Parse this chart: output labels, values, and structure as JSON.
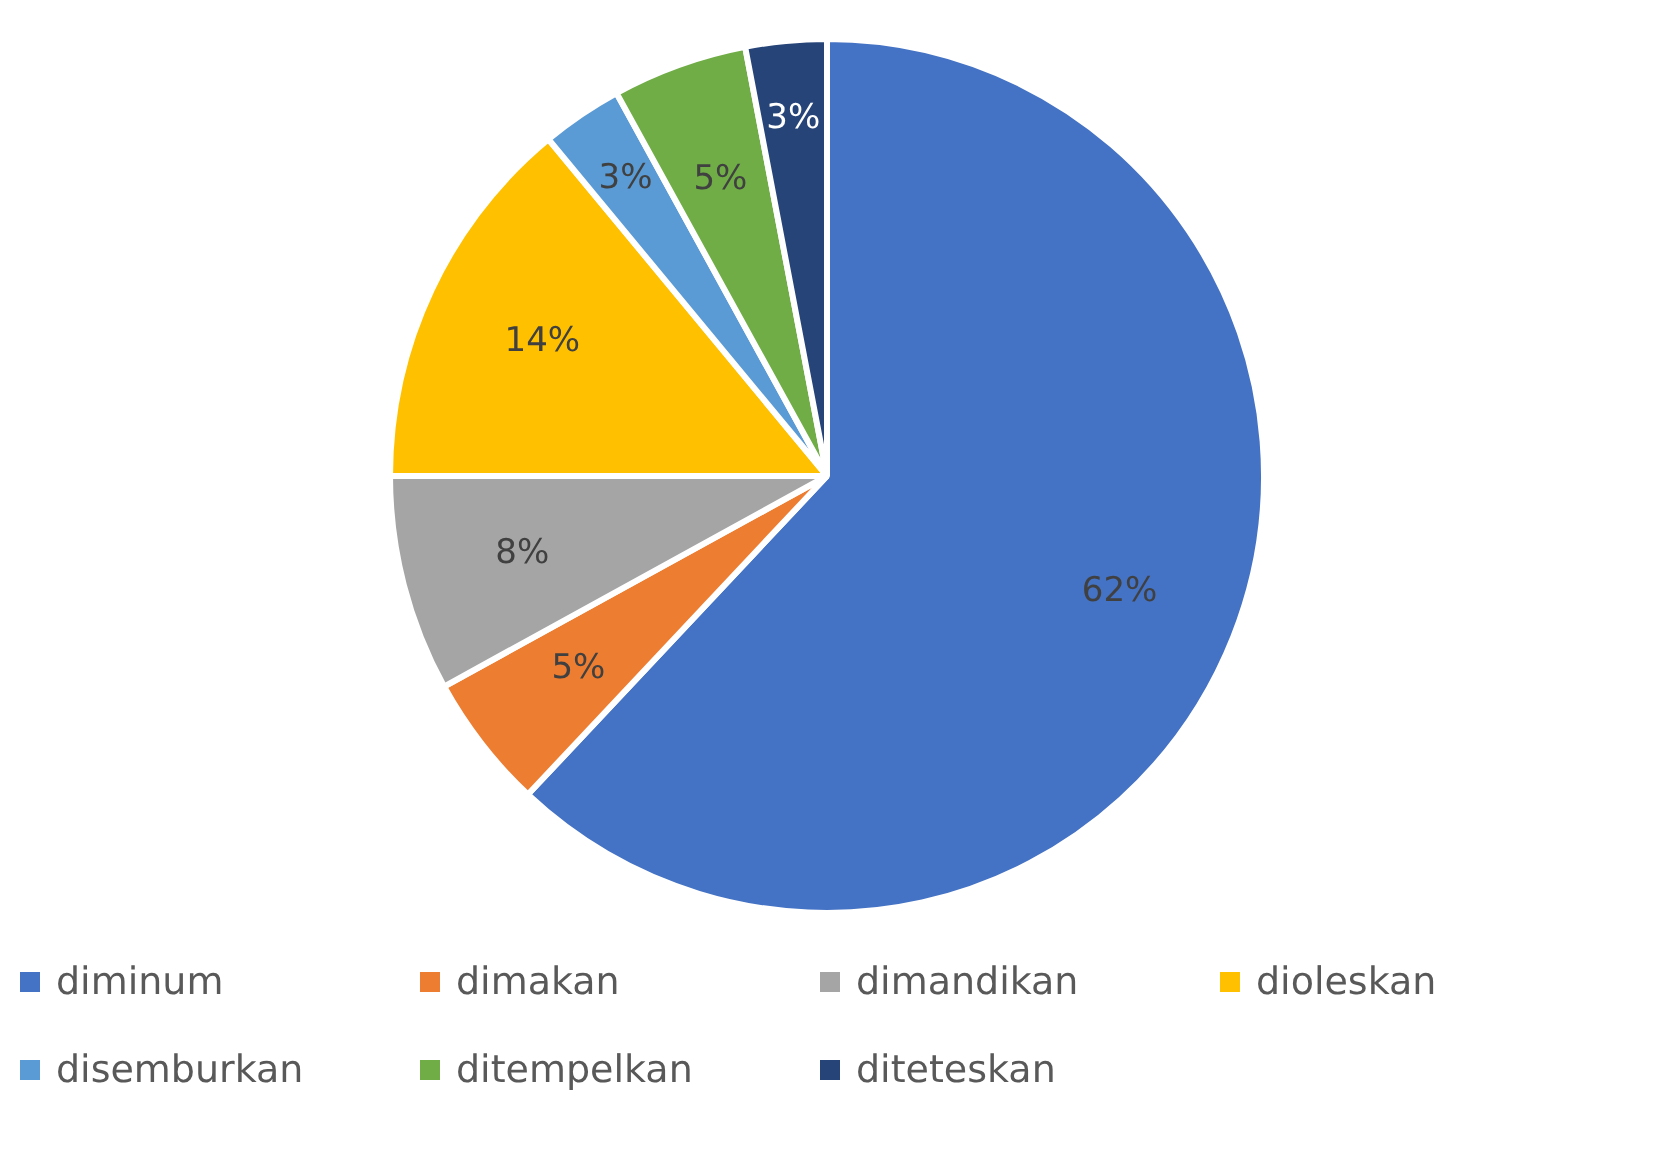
{
  "chart_data": {
    "type": "pie",
    "categories": [
      "diminum",
      "dimakan",
      "dimandikan",
      "dioleskan",
      "disemburkan",
      "ditempelkan",
      "diteteskan"
    ],
    "values": [
      62,
      5,
      8,
      14,
      3,
      5,
      3
    ],
    "colors": [
      "#4472c4",
      "#ed7d31",
      "#a5a5a5",
      "#ffc000",
      "#5b9bd5",
      "#70ad47",
      "#264478"
    ],
    "value_labels": [
      "62%",
      "5%",
      "8%",
      "14%",
      "3%",
      "5%",
      "3%"
    ],
    "legend": "bottom"
  }
}
